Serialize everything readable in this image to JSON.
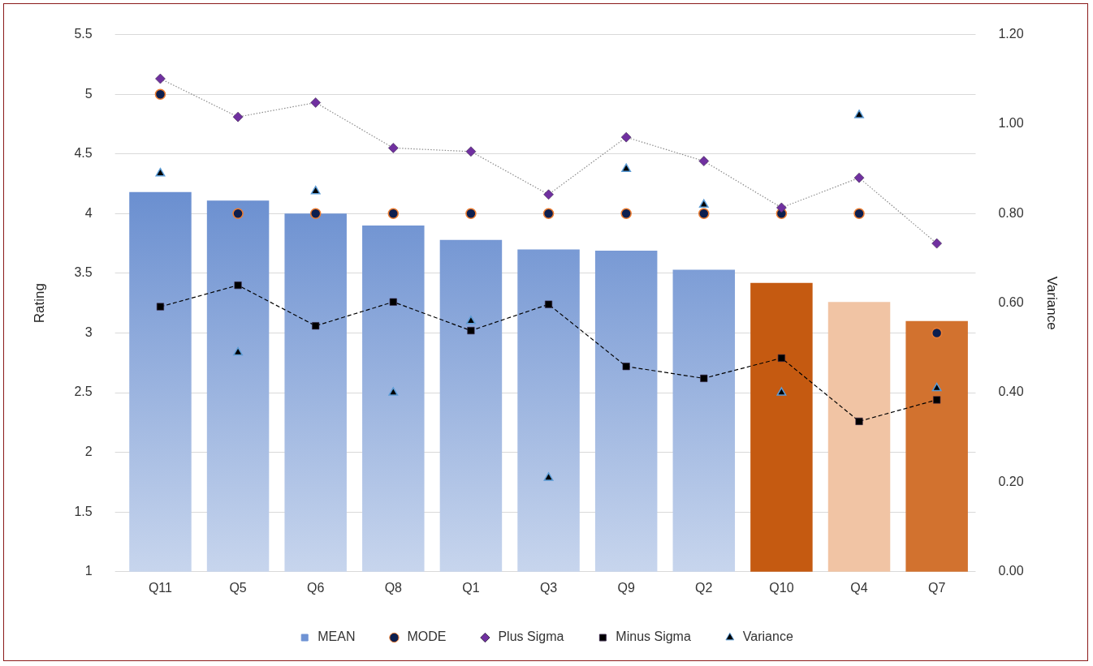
{
  "chart_data": {
    "type": "bar",
    "categories": [
      "Q11",
      "Q5",
      "Q6",
      "Q8",
      "Q1",
      "Q3",
      "Q9",
      "Q2",
      "Q10",
      "Q4",
      "Q7"
    ],
    "ylabel": "Rating",
    "y2label": "Variance",
    "ylim": [
      1,
      5.5
    ],
    "yticks": [
      1,
      1.5,
      2,
      2.5,
      3,
      3.5,
      4,
      4.5,
      5,
      5.5
    ],
    "y2lim": [
      0,
      1.2
    ],
    "y2ticks": [
      {
        "value": 0,
        "label": "0.00"
      },
      {
        "value": 0.2,
        "label": "0.20"
      },
      {
        "value": 0.4,
        "label": "0.40"
      },
      {
        "value": 0.6,
        "label": "0.60"
      },
      {
        "value": 0.8,
        "label": "0.80"
      },
      {
        "value": 1,
        "label": "1.00"
      },
      {
        "value": 1.2,
        "label": "1.20"
      }
    ],
    "grid": "y",
    "legend": "bottom",
    "series": [
      {
        "name": "MEAN",
        "type": "bar",
        "color": "#4472c4",
        "colors": [
          "#4472c4",
          "#4472c4",
          "#4472c4",
          "#4472c4",
          "#4472c4",
          "#4472c4",
          "#4472c4",
          "#4472c4",
          "#c55a11",
          "#f1c4a4",
          "#d2722f"
        ],
        "values": [
          4.18,
          4.11,
          4.0,
          3.9,
          3.78,
          3.7,
          3.69,
          3.53,
          3.42,
          3.26,
          3.1
        ]
      },
      {
        "name": "MODE",
        "type": "scatter",
        "color": "#0d1f4f",
        "marker": "circle",
        "x": [
          "Q11",
          "Q5",
          "Q6",
          "Q8",
          "Q1",
          "Q3",
          "Q9",
          "Q2",
          "Q10",
          "Q4",
          "Q7"
        ],
        "values": [
          5,
          4,
          4,
          4,
          4,
          4,
          4,
          4,
          4,
          4,
          3
        ]
      },
      {
        "name": "Plus Sigma",
        "type": "line",
        "color": "#7030a0",
        "marker": "diamond",
        "line_style": "dotted",
        "values": [
          5.13,
          4.81,
          4.93,
          4.55,
          4.52,
          4.16,
          4.64,
          4.44,
          4.05,
          4.3,
          3.75
        ]
      },
      {
        "name": "Minus Sigma",
        "type": "line",
        "color": "#000000",
        "marker": "square",
        "line_style": "dashed",
        "values": [
          3.22,
          3.4,
          3.06,
          3.26,
          3.02,
          3.24,
          2.72,
          2.62,
          2.79,
          2.26,
          2.44
        ]
      },
      {
        "name": "Variance",
        "type": "scatter",
        "axis": "y2",
        "color": "#000000",
        "marker": "triangle",
        "x": [
          "Q11",
          "Q5",
          "Q6",
          "Q8",
          "Q1",
          "Q3",
          "Q9",
          "Q2",
          "Q10",
          "Q4",
          "Q7"
        ],
        "values": [
          0.89,
          0.49,
          0.85,
          0.4,
          0.56,
          0.21,
          0.9,
          0.82,
          0.4,
          1.02,
          0.41
        ]
      }
    ]
  }
}
